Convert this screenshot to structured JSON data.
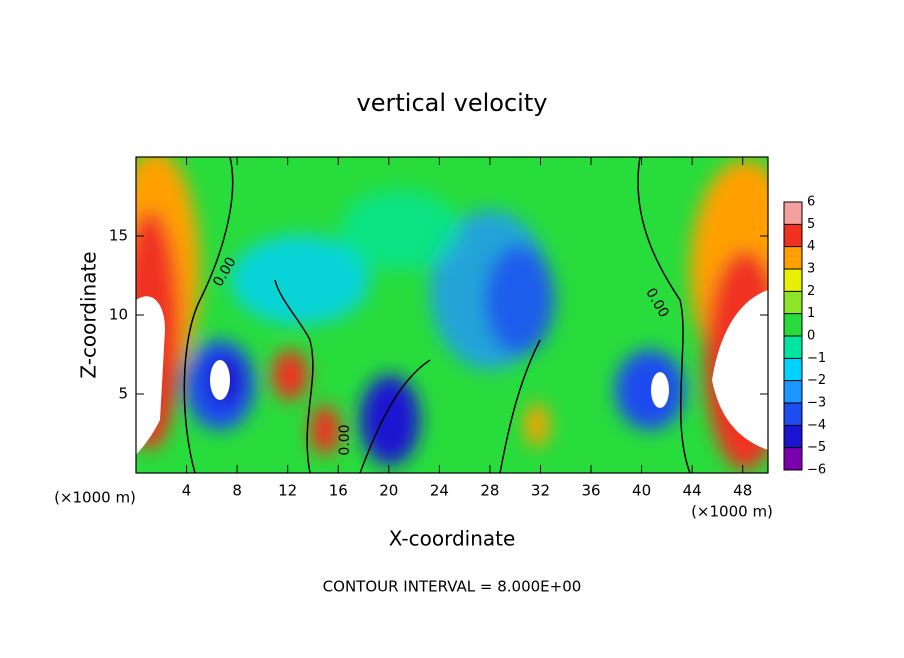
{
  "chart_data": {
    "type": "contour",
    "title": "vertical velocity",
    "xlabel": "X-coordinate",
    "ylabel": "Z-coordinate",
    "x_unit": "(×1000 m)",
    "footer": "CONTOUR INTERVAL = 8.000E+00",
    "contour_label": "0.00",
    "xlim": [
      0,
      50
    ],
    "xticks": [
      4,
      8,
      12,
      16,
      20,
      24,
      28,
      32,
      36,
      40,
      44,
      48
    ],
    "ylim": [
      0,
      20
    ],
    "yticks": [
      5,
      10,
      15
    ],
    "colorbar": {
      "ticks": [
        {
          "value": -6,
          "label": "−6"
        },
        {
          "value": -5,
          "label": "−5"
        },
        {
          "value": -4,
          "label": "−4"
        },
        {
          "value": -3,
          "label": "−3"
        },
        {
          "value": -2,
          "label": "−2"
        },
        {
          "value": -1,
          "label": "−1"
        },
        0,
        1,
        2,
        3,
        4,
        5,
        6
      ],
      "colors": [
        "#7a00b0",
        "#1a14d0",
        "#1e4cf0",
        "#1e96ff",
        "#00d2ff",
        "#00e6a0",
        "#28dc3c",
        "#8ce628",
        "#e6f000",
        "#ffa000",
        "#f03020",
        "#f5a0a0"
      ]
    }
  }
}
